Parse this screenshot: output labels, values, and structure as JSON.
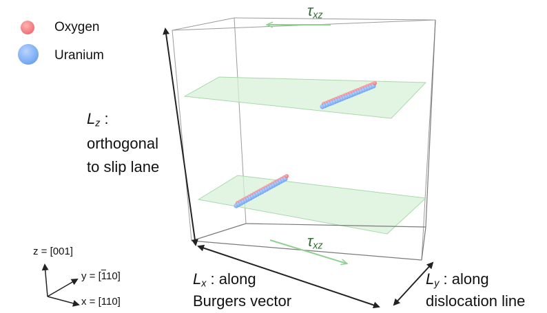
{
  "legend": {
    "items": [
      {
        "label": "Oxygen",
        "color": "#ef6f73"
      },
      {
        "label": "Uranium",
        "color": "#6fa4f0"
      }
    ]
  },
  "shear": {
    "top": {
      "symbol": "τ",
      "subscript": "xz"
    },
    "bottom": {
      "symbol": "τ",
      "subscript": "xz"
    },
    "arrow_color": "#8fd18f"
  },
  "dimensions": {
    "lz": {
      "symbol": "L",
      "subscript": "z",
      "suffix": " :",
      "line2": "orthogonal",
      "line3": "to slip lane"
    },
    "lx": {
      "symbol": "L",
      "subscript": "x",
      "suffix": " : along",
      "line2": "Burgers vector"
    },
    "ly": {
      "symbol": "L",
      "subscript": "y",
      "suffix": " : along",
      "line2": "dislocation line"
    }
  },
  "axes": {
    "z": "z = [001]",
    "y_prefix": "y = [",
    "y_bar": "1",
    "y_suffix": "10]",
    "x": "x = [110]"
  },
  "colors": {
    "box_edge": "#8a8a8a",
    "plane_fill": "#d8f0d8",
    "plane_edge": "#a9d9a9",
    "dimension_arrow": "#222222"
  }
}
